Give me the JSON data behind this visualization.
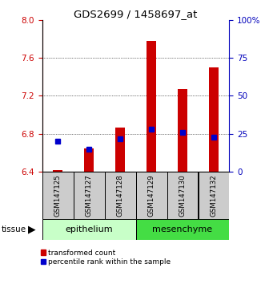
{
  "title": "GDS2699 / 1458697_at",
  "samples": [
    "GSM147125",
    "GSM147127",
    "GSM147128",
    "GSM147129",
    "GSM147130",
    "GSM147132"
  ],
  "red_values": [
    6.42,
    6.65,
    6.87,
    7.78,
    7.27,
    7.5
  ],
  "blue_percentiles": [
    20,
    15,
    22,
    28,
    26,
    23
  ],
  "y_min": 6.4,
  "y_max": 8.0,
  "y_ticks_left": [
    6.4,
    6.8,
    7.2,
    7.6,
    8.0
  ],
  "y_ticks_right": [
    0,
    25,
    50,
    75,
    100
  ],
  "bar_bottom": 6.4,
  "red_color": "#CC0000",
  "blue_color": "#0000CC",
  "left_axis_color": "#CC0000",
  "right_axis_color": "#0000BB",
  "sample_box_color": "#CCCCCC",
  "epithelium_color": "#c8ffc8",
  "mesenchyme_color": "#44dd44",
  "legend_red_label": "transformed count",
  "legend_blue_label": "percentile rank within the sample",
  "bar_width": 0.3
}
